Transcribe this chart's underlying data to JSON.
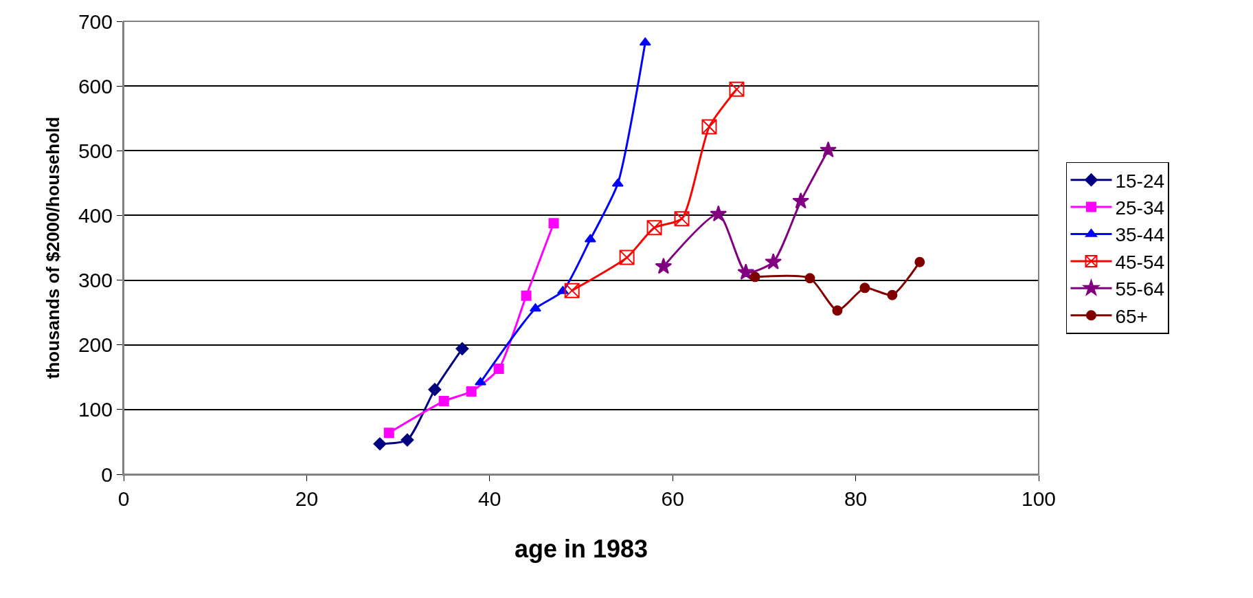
{
  "chart_data": {
    "type": "line",
    "xlabel": "age in 1983",
    "ylabel": "thousands of $2000/household",
    "xlim": [
      0,
      100
    ],
    "xticks": [
      0,
      20,
      40,
      60,
      80,
      100
    ],
    "ylim": [
      0,
      700
    ],
    "yticks": [
      0,
      100,
      200,
      300,
      400,
      500,
      600,
      700
    ],
    "grid": "y",
    "legend": "right",
    "line_style": "solid",
    "series": [
      {
        "name": "15-24",
        "color": "#000080",
        "marker": "diamond",
        "x": [
          28,
          31,
          34,
          37
        ],
        "values": [
          47,
          53,
          131,
          194
        ]
      },
      {
        "name": "25-34",
        "color": "#ff00ff",
        "marker": "square",
        "x": [
          29,
          35,
          38,
          41,
          44,
          47
        ],
        "values": [
          64,
          113,
          128,
          163,
          276,
          388
        ]
      },
      {
        "name": "35-44",
        "color": "#0000ff",
        "marker": "triangle",
        "x": [
          39,
          45,
          48,
          51,
          54,
          57
        ],
        "values": [
          142,
          256,
          283,
          363,
          449,
          667
        ]
      },
      {
        "name": "45-54",
        "color": "#ff0000",
        "marker": "cross",
        "x": [
          49,
          55,
          58,
          61,
          64,
          67
        ],
        "values": [
          284,
          335,
          381,
          395,
          537,
          595
        ]
      },
      {
        "name": "55-64",
        "color": "#800080",
        "marker": "star",
        "x": [
          59,
          65,
          68,
          71,
          74,
          77
        ],
        "values": [
          321,
          402,
          312,
          328,
          422,
          501
        ]
      },
      {
        "name": "65+",
        "color": "#800000",
        "marker": "circle",
        "x": [
          69,
          75,
          78,
          81,
          84,
          87
        ],
        "values": [
          305,
          303,
          253,
          288,
          277,
          328
        ]
      }
    ]
  }
}
